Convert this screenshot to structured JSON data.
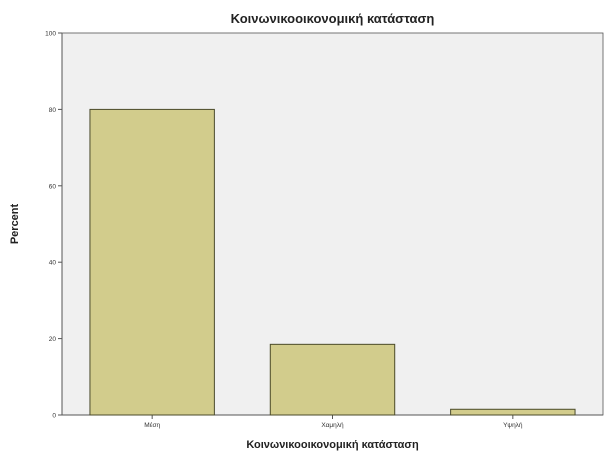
{
  "chart_data": {
    "type": "bar",
    "title": "Κοινωνικοοικονομική κατάσταση",
    "xlabel": "Κοινωνικοοικονομική κατάσταση",
    "ylabel": "Percent",
    "categories": [
      "Μέση",
      "Χαμηλή",
      "Υψηλή"
    ],
    "values": [
      80,
      18.5,
      1.5
    ],
    "ylim": [
      0,
      100
    ],
    "yticks": [
      0,
      20,
      40,
      60,
      80,
      100
    ],
    "grid": false,
    "legend": "none",
    "colors": {
      "bar_fill": "#d2cc8c",
      "bar_stroke": "#4a4a2a",
      "plot_background": "#f0f0f0",
      "axis": "#555555"
    }
  }
}
